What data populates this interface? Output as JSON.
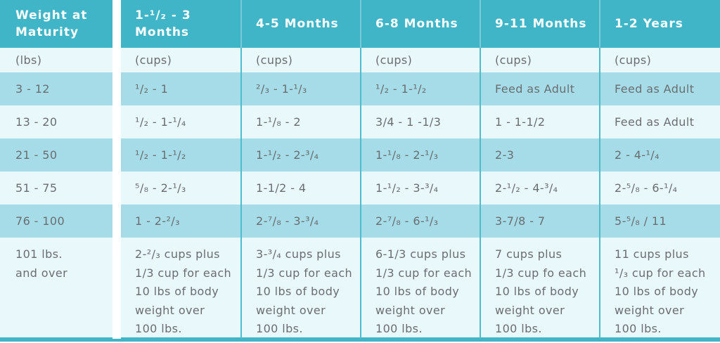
{
  "colors": {
    "accent": "#41b5c8",
    "row_alt": "#a6dce8",
    "row_pale": "#e9f8fb",
    "line": "#4dbccd",
    "text": "#6a6e71"
  },
  "chart_data": {
    "type": "table",
    "title": "Weight at Maturity feeding guide",
    "header": [
      "Weight at\nMaturity",
      "1-¹/₂ - 3\nMonths",
      "4-5 Months",
      "6-8 Months",
      "9-11 Months",
      "1-2 Years"
    ],
    "units": [
      "(lbs)",
      "(cups)",
      "(cups)",
      "(cups)",
      "(cups)",
      "(cups)"
    ],
    "rows": [
      [
        "3 - 12",
        "¹/₂ - 1",
        "²/₃ - 1-¹/₃",
        "¹/₂ - 1-¹/₂",
        "Feed as Adult",
        "Feed as Adult"
      ],
      [
        "13 - 20",
        "¹/₂ - 1-¹/₄",
        "1-¹/₈ - 2",
        "3/4 - 1 -1/3",
        "1 - 1-1/2",
        "Feed as Adult"
      ],
      [
        "21 - 50",
        "¹/₂ - 1-¹/₂",
        "1-¹/₂ - 2-³/₄",
        "1-¹/₈ - 2-¹/₃",
        "2-3",
        "2 - 4-¹/₄"
      ],
      [
        "51 - 75",
        "⁵/₈ - 2-¹/₃",
        "1-1/2 - 4",
        "1-¹/₂ - 3-³/₄",
        "2-¹/₂ - 4-³/₄",
        "2-⁵/₈ - 6-¹/₄"
      ],
      [
        "76 - 100",
        "1 - 2-²/₃",
        "2-⁷/₈ - 3-³/₄",
        "2-⁷/₈ - 6-¹/₃",
        "3-7/8 - 7",
        "5-⁵/₈ / 11"
      ],
      [
        "101 lbs.\nand over",
        "2-²/₃ cups plus\n1/3 cup for each\n10 lbs of body\nweight over\n100 lbs.",
        "3-³/₄ cups plus\n1/3 cup for each\n10 lbs of body\nweight over\n100 lbs.",
        "6-1/3 cups plus\n1/3 cup for each\n10 lbs of body\nweight over\n100 lbs.",
        "7 cups plus\n1/3 cup fo each\n10 lbs of body\nweight over\n100 lbs.",
        "11 cups plus\n¹/₃ cup for each\n10 lbs of body\nweight over\n100 lbs."
      ]
    ]
  }
}
